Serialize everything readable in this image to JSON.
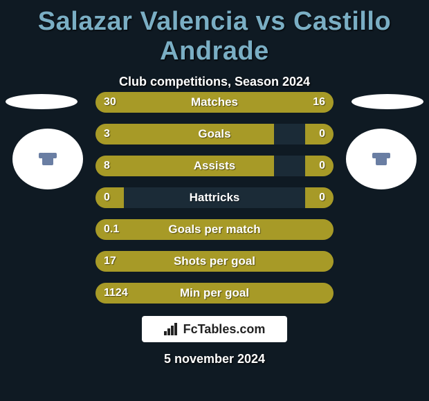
{
  "title_color": "#7aaec4",
  "title_prefix": "Salazar Valencia",
  "title_vs": " vs ",
  "title_suffix": "Castillo Andrade",
  "subtitle": "Club competitions, Season 2024",
  "date": "5 november 2024",
  "logo_text": "FcTables.com",
  "bar_color_left": "#a79a27",
  "bar_color_right": "#a79a27",
  "bar_bg": "#1b2b37",
  "stats": [
    {
      "label": "Matches",
      "left_val": "30",
      "right_val": "16",
      "left_pct": 65,
      "right_pct": 35
    },
    {
      "label": "Goals",
      "left_val": "3",
      "right_val": "0",
      "left_pct": 75,
      "right_pct": 12
    },
    {
      "label": "Assists",
      "left_val": "8",
      "right_val": "0",
      "left_pct": 75,
      "right_pct": 12
    },
    {
      "label": "Hattricks",
      "left_val": "0",
      "right_val": "0",
      "left_pct": 12,
      "right_pct": 12
    },
    {
      "label": "Goals per match",
      "left_val": "0.1",
      "right_val": "",
      "left_pct": 100,
      "right_pct": 0
    },
    {
      "label": "Shots per goal",
      "left_val": "17",
      "right_val": "",
      "left_pct": 100,
      "right_pct": 0
    },
    {
      "label": "Min per goal",
      "left_val": "1124",
      "right_val": "",
      "left_pct": 100,
      "right_pct": 0
    }
  ]
}
